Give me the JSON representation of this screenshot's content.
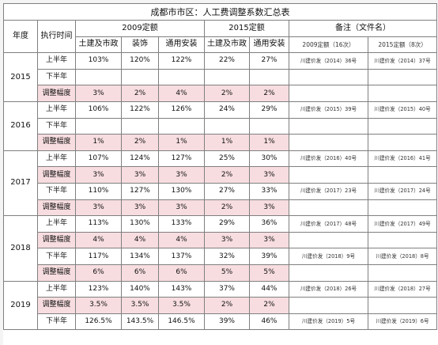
{
  "title": "成都市市区：人工费调整系数汇总表",
  "headers": {
    "year": "年度",
    "period": "执行时间",
    "group2009": "2009定额",
    "group2015": "2015定额",
    "remarks": "备注（文件名）",
    "sub2009": [
      "土建及市政",
      "装饰",
      "通用安装"
    ],
    "sub2015": [
      "土建及市政",
      "通用安装"
    ],
    "remark2009": "2009定额（16次）",
    "remark2015": "2015定额（8次）"
  },
  "rows": [
    {
      "year": "2015",
      "period": "上半年",
      "v": [
        "103%",
        "120%",
        "122%",
        "22%",
        "27%"
      ],
      "r1": "川建价发（2014）36号",
      "r2": "川建价发（2014）37号",
      "hl": false
    },
    {
      "period": "下半年",
      "v": [
        "",
        "",
        "",
        "",
        ""
      ],
      "r1": "",
      "r2": "",
      "hl": false
    },
    {
      "period": "调整幅度",
      "v": [
        "3%",
        "2%",
        "4%",
        "2%",
        "2%"
      ],
      "r1": "",
      "r2": "",
      "hl": true
    },
    {
      "year": "2016",
      "period": "上半年",
      "v": [
        "106%",
        "122%",
        "126%",
        "24%",
        "29%"
      ],
      "r1": "川建价发（2015）39号",
      "r2": "川建价发（2015）40号",
      "hl": false
    },
    {
      "period": "下半年",
      "v": [
        "",
        "",
        "",
        "",
        ""
      ],
      "r1": "",
      "r2": "",
      "hl": false
    },
    {
      "period": "调整幅度",
      "v": [
        "1%",
        "2%",
        "1%",
        "1%",
        "1%"
      ],
      "r1": "",
      "r2": "",
      "hl": true
    },
    {
      "year": "2017",
      "period": "上半年",
      "v": [
        "107%",
        "124%",
        "127%",
        "25%",
        "30%"
      ],
      "r1": "川建价发（2016）40号",
      "r2": "川建价发（2016）41号",
      "hl": false
    },
    {
      "period": "调整幅度",
      "v": [
        "3%",
        "3%",
        "3%",
        "2%",
        "3%"
      ],
      "r1": "",
      "r2": "",
      "hl": true
    },
    {
      "period": "下半年",
      "v": [
        "110%",
        "127%",
        "130%",
        "27%",
        "33%"
      ],
      "r1": "川建价发（2017）23号",
      "r2": "川建价发（2017）24号",
      "hl": false
    },
    {
      "period": "调整幅度",
      "v": [
        "3%",
        "3%",
        "3%",
        "2%",
        "3%"
      ],
      "r1": "",
      "r2": "",
      "hl": true
    },
    {
      "year": "2018",
      "period": "上半年",
      "v": [
        "113%",
        "130%",
        "133%",
        "29%",
        "36%"
      ],
      "r1": "川建价发（2017）48号",
      "r2": "川建价发（2017）49号",
      "hl": false
    },
    {
      "period": "调整幅度",
      "v": [
        "4%",
        "4%",
        "4%",
        "3%",
        "3%"
      ],
      "r1": "",
      "r2": "",
      "hl": true
    },
    {
      "period": "下半年",
      "v": [
        "117%",
        "134%",
        "137%",
        "32%",
        "39%"
      ],
      "r1": "川建价发（2018）9号",
      "r2": "川建价发（2018）8号",
      "hl": false
    },
    {
      "period": "调整幅度",
      "v": [
        "6%",
        "6%",
        "6%",
        "5%",
        "5%"
      ],
      "r1": "",
      "r2": "",
      "hl": true
    },
    {
      "year": "2019",
      "period": "上半年",
      "v": [
        "123%",
        "140%",
        "143%",
        "37%",
        "44%"
      ],
      "r1": "川建价发（2018）26号",
      "r2": "川建价发（2018）27号",
      "hl": false
    },
    {
      "period": "调整幅度",
      "v": [
        "3.5%",
        "3.5%",
        "3.5%",
        "2%",
        "2%"
      ],
      "r1": "",
      "r2": "",
      "hl": true
    },
    {
      "period": "下半年",
      "v": [
        "126.5%",
        "143.5%",
        "146.5%",
        "39%",
        "46%"
      ],
      "r1": "川建价发（2019）5号",
      "r2": "川建价发（2019）6号",
      "hl": false
    }
  ]
}
